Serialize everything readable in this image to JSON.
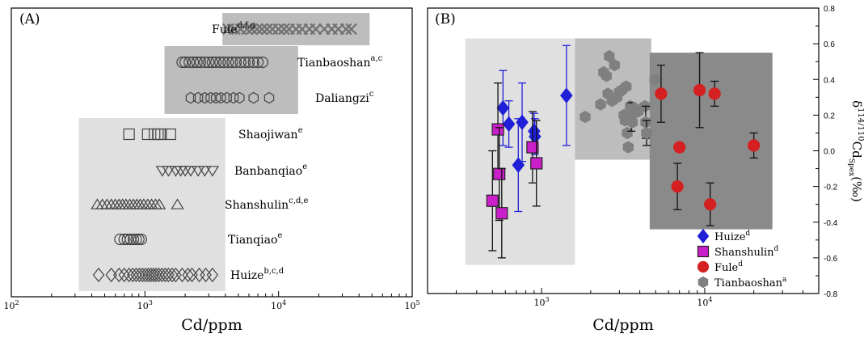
{
  "chart_data": [
    {
      "panel_label": "(A)",
      "type": "scatter",
      "xlabel": "Cd/ppm",
      "xscale": "log",
      "xlim": [
        100,
        100000
      ],
      "x_ticks": [
        {
          "value": 100,
          "base": "10",
          "exp": "2"
        },
        {
          "value": 1000,
          "base": "10",
          "exp": "3"
        },
        {
          "value": 10000,
          "base": "10",
          "exp": "4"
        },
        {
          "value": 100000,
          "base": "10",
          "exp": "5"
        }
      ],
      "shaded_regions": [
        {
          "x": [
            320,
            4000
          ],
          "rows": [
            4,
            8
          ],
          "color": "#e0e0e0"
        },
        {
          "x": [
            1400,
            14000
          ],
          "rows": [
            2,
            3
          ],
          "color": "#bdbdbd"
        },
        {
          "x": [
            3800,
            48000
          ],
          "rows": [
            1,
            1
          ],
          "color": "#bdbdbd"
        }
      ],
      "series": [
        {
          "name": "Fule",
          "sup": "d,f,g",
          "marker": "x",
          "row": 1,
          "values": [
            4200,
            4700,
            5200,
            5800,
            6300,
            6900,
            7500,
            8200,
            9000,
            10000,
            11000,
            12000,
            13500,
            15000,
            17000,
            19000,
            22000,
            25000,
            28000,
            32000,
            35000
          ]
        },
        {
          "name": "Tianbaoshan",
          "sup": "a,c",
          "marker": "circle",
          "row": 2,
          "values": [
            1900,
            2000,
            2150,
            2300,
            2450,
            2600,
            2800,
            3000,
            3200,
            3400,
            3650,
            3900,
            4200,
            4500,
            4800,
            5200,
            5600,
            6000,
            6500,
            7000,
            7600
          ]
        },
        {
          "name": "Daliangzi",
          "sup": "c",
          "marker": "hexagon",
          "row": 3,
          "values": [
            2200,
            2500,
            2800,
            3100,
            3400,
            3700,
            4100,
            4600,
            5100,
            6500,
            8500
          ]
        },
        {
          "name": "Shaojiwan",
          "sup": "e",
          "marker": "square",
          "row": 4,
          "values": [
            760,
            1050,
            1180,
            1250,
            1320,
            1550
          ]
        },
        {
          "name": "Banbanqiao",
          "sup": "e",
          "marker": "triangle-down",
          "row": 5,
          "values": [
            1350,
            1500,
            1700,
            1850,
            2000,
            2200,
            2500,
            2800,
            3200
          ]
        },
        {
          "name": "Shanshulin",
          "sup": "c,d,e",
          "marker": "triangle-up",
          "row": 6,
          "values": [
            440,
            480,
            520,
            560,
            600,
            640,
            680,
            720,
            770,
            820,
            870,
            920,
            980,
            1050,
            1120,
            1200,
            1280,
            1750
          ]
        },
        {
          "name": "Tianqiao",
          "sup": "e",
          "marker": "circle",
          "row": 7,
          "values": [
            650,
            700,
            740,
            780,
            820,
            860,
            900,
            940
          ]
        },
        {
          "name": "Huize",
          "sup": "b,c,d",
          "marker": "diamond",
          "row": 8,
          "values": [
            450,
            560,
            640,
            700,
            760,
            810,
            860,
            910,
            960,
            1010,
            1060,
            1110,
            1160,
            1210,
            1270,
            1340,
            1420,
            1500,
            1600,
            1700,
            1900,
            2100,
            2250,
            2550,
            2850,
            3200
          ]
        }
      ]
    },
    {
      "panel_label": "(B)",
      "type": "scatter",
      "xlabel": "Cd/ppm",
      "xscale": "log",
      "xlim": [
        200,
        50000
      ],
      "x_ticks": [
        {
          "value": 1000,
          "base": "10",
          "exp": "3"
        },
        {
          "value": 10000,
          "base": "10",
          "exp": "4"
        }
      ],
      "ylabel_main": "δ",
      "ylabel_sup": "114/110",
      "ylabel_cd": "Cd",
      "ylabel_sub": "Spex",
      "ylabel_unit": "(‰)",
      "ylim": [
        -0.8,
        0.8
      ],
      "y_ticks": [
        "-0.8",
        "-0.6",
        "-0.4",
        "-0.2",
        "0.0",
        "0.2",
        "0.4",
        "0.6",
        "0.8"
      ],
      "shaded_regions": [
        {
          "x": [
            340,
            1600
          ],
          "y": [
            -0.64,
            0.63
          ],
          "color": "#e0e0e0"
        },
        {
          "x": [
            1600,
            4700
          ],
          "y": [
            -0.05,
            0.63
          ],
          "color": "#bdbdbd"
        },
        {
          "x": [
            4600,
            26000
          ],
          "y": [
            -0.44,
            0.55
          ],
          "color": "#8a8a8a"
        }
      ],
      "series": [
        {
          "name": "Huize",
          "sup": "d",
          "marker": "diamond",
          "color": "#1f1fd8",
          "points": [
            {
              "x": 580,
              "y": 0.24,
              "err": 0.21
            },
            {
              "x": 630,
              "y": 0.15,
              "err": 0.13
            },
            {
              "x": 720,
              "y": -0.08,
              "err": 0.26
            },
            {
              "x": 760,
              "y": 0.16,
              "err": 0.22
            },
            {
              "x": 900,
              "y": 0.11,
              "err": 0.1
            },
            {
              "x": 910,
              "y": 0.08,
              "err": 0.1
            },
            {
              "x": 1420,
              "y": 0.31,
              "err": 0.28
            }
          ]
        },
        {
          "name": "Shanshulin",
          "sup": "d",
          "marker": "square",
          "color": "#cc1fcc",
          "points": [
            {
              "x": 500,
              "y": -0.28,
              "err": 0.28
            },
            {
              "x": 540,
              "y": 0.12,
              "err": 0.26
            },
            {
              "x": 550,
              "y": -0.13,
              "err": 0.26
            },
            {
              "x": 570,
              "y": -0.35,
              "err": 0.25
            },
            {
              "x": 880,
              "y": 0.02,
              "err": 0.2
            },
            {
              "x": 930,
              "y": -0.07,
              "err": 0.24
            }
          ]
        },
        {
          "name": "Fule",
          "sup": "d",
          "marker": "circle",
          "color": "#d42020",
          "points": [
            {
              "x": 5400,
              "y": 0.32,
              "err": 0.16
            },
            {
              "x": 6800,
              "y": -0.2,
              "err": 0.13
            },
            {
              "x": 7000,
              "y": 0.02,
              "err": 0
            },
            {
              "x": 9300,
              "y": 0.34,
              "err": 0.21
            },
            {
              "x": 10800,
              "y": -0.3,
              "err": 0.12
            },
            {
              "x": 11500,
              "y": 0.32,
              "err": 0.07
            },
            {
              "x": 20000,
              "y": 0.03,
              "err": 0.07
            }
          ]
        },
        {
          "name": "Tianbaoshan",
          "sup": "a",
          "marker": "hexagon",
          "color": "#808080",
          "points": [
            {
              "x": 1850,
              "y": 0.19,
              "err": 0
            },
            {
              "x": 2300,
              "y": 0.26,
              "err": 0
            },
            {
              "x": 2400,
              "y": 0.44,
              "err": 0
            },
            {
              "x": 2500,
              "y": 0.42,
              "err": 0
            },
            {
              "x": 2550,
              "y": 0.32,
              "err": 0
            },
            {
              "x": 2600,
              "y": 0.53,
              "err": 0
            },
            {
              "x": 2700,
              "y": 0.28,
              "err": 0
            },
            {
              "x": 2800,
              "y": 0.48,
              "err": 0
            },
            {
              "x": 2900,
              "y": 0.3,
              "err": 0
            },
            {
              "x": 3000,
              "y": 0.33,
              "err": 0
            },
            {
              "x": 3100,
              "y": 0.34,
              "err": 0
            },
            {
              "x": 3200,
              "y": 0.2,
              "err": 0
            },
            {
              "x": 3250,
              "y": 0.17,
              "err": 0
            },
            {
              "x": 3300,
              "y": 0.36,
              "err": 0
            },
            {
              "x": 3350,
              "y": 0.1,
              "err": 0
            },
            {
              "x": 3400,
              "y": 0.02,
              "err": 0
            },
            {
              "x": 3500,
              "y": 0.25,
              "err": 0
            },
            {
              "x": 3550,
              "y": 0.19,
              "err": 0.08
            },
            {
              "x": 3600,
              "y": 0.16,
              "err": 0
            },
            {
              "x": 3700,
              "y": 0.24,
              "err": 0
            },
            {
              "x": 3900,
              "y": 0.22,
              "err": 0
            },
            {
              "x": 4300,
              "y": 0.25,
              "err": 0
            },
            {
              "x": 4350,
              "y": 0.16,
              "err": 0.09
            },
            {
              "x": 4400,
              "y": 0.1,
              "err": 0.07
            },
            {
              "x": 4950,
              "y": 0.4,
              "err": 0
            }
          ]
        }
      ],
      "legend": {
        "position": "bottom-right"
      }
    }
  ]
}
